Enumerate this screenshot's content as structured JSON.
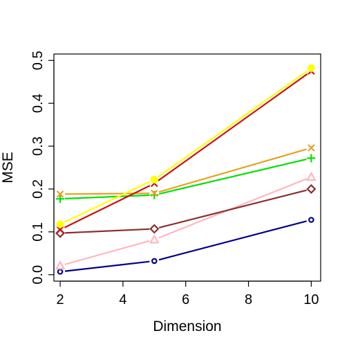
{
  "chart_data": {
    "type": "line",
    "xlabel": "Dimension",
    "ylabel": "MSE",
    "xlim": [
      1.8,
      10.3
    ],
    "ylim": [
      -0.015,
      0.515
    ],
    "xticks": [
      2,
      4,
      6,
      8,
      10
    ],
    "yticks": [
      0.0,
      0.1,
      0.2,
      0.3,
      0.4,
      0.5
    ],
    "xtick_labels": [
      "2",
      "4",
      "6",
      "8",
      "10"
    ],
    "ytick_labels": [
      "0.0",
      "0.1",
      "0.2",
      "0.3",
      "0.4",
      "0.5"
    ],
    "grid": false,
    "x": [
      2,
      5,
      10
    ],
    "series": [
      {
        "color": "#00008B",
        "marker": "circle",
        "values": [
          0.007,
          0.032,
          0.128
        ]
      },
      {
        "color": "#FFB6C1",
        "marker": "triangle",
        "values": [
          0.021,
          0.082,
          0.228
        ]
      },
      {
        "color": "#8B2E2E",
        "marker": "diamond",
        "values": [
          0.097,
          0.107,
          0.2
        ]
      },
      {
        "color": "#00E000",
        "marker": "plus",
        "values": [
          0.177,
          0.186,
          0.272
        ]
      },
      {
        "color": "#E8A020",
        "marker": "cross",
        "values": [
          0.188,
          0.19,
          0.296
        ]
      },
      {
        "color": "#CC1010",
        "marker": "cross",
        "values": [
          0.105,
          0.213,
          0.475
        ]
      },
      {
        "color": "#FFFF00",
        "marker": "circle-filled",
        "values": [
          0.118,
          0.222,
          0.482
        ]
      }
    ]
  }
}
